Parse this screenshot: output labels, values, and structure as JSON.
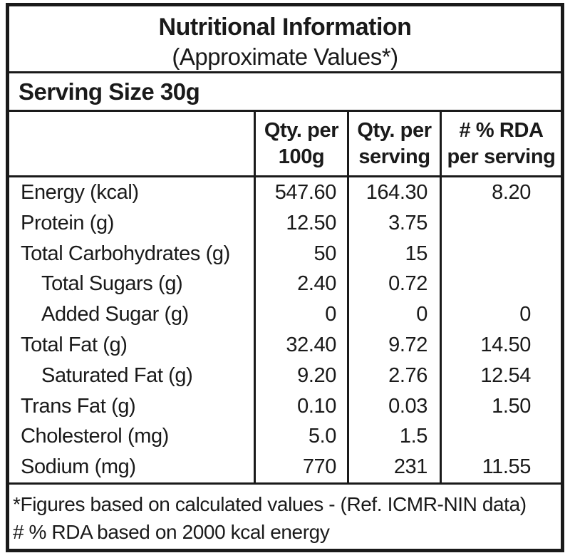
{
  "header": {
    "title": "Nutritional Information",
    "subtitle": "(Approximate Values*)"
  },
  "serving": {
    "label": "Serving Size 30g"
  },
  "table": {
    "columns": [
      {
        "line1": "",
        "line2": ""
      },
      {
        "line1": "Qty. per",
        "line2": "100g"
      },
      {
        "line1": "Qty. per",
        "line2": "serving"
      },
      {
        "line1": "# % RDA",
        "line2": "per serving"
      }
    ],
    "rows": [
      {
        "label": "Energy (kcal)",
        "per_100g": "547.60",
        "per_serving": "164.30",
        "rda_percent": "8.20"
      },
      {
        "label": "Protein (g)",
        "per_100g": "12.50",
        "per_serving": "3.75",
        "rda_percent": ""
      },
      {
        "label": "Total Carbohydrates (g)",
        "per_100g": "50",
        "per_serving": "15",
        "rda_percent": ""
      },
      {
        "label": "Total Sugars (g)",
        "per_100g": "2.40",
        "per_serving": "0.72",
        "rda_percent": ""
      },
      {
        "label": "Added Sugar (g)",
        "per_100g": "0",
        "per_serving": "0",
        "rda_percent": "0"
      },
      {
        "label": "Total Fat (g)",
        "per_100g": "32.40",
        "per_serving": "9.72",
        "rda_percent": "14.50"
      },
      {
        "label": "Saturated Fat (g)",
        "per_100g": "9.20",
        "per_serving": "2.76",
        "rda_percent": "12.54"
      },
      {
        "label": "Trans Fat (g)",
        "per_100g": "0.10",
        "per_serving": "0.03",
        "rda_percent": "1.50"
      },
      {
        "label": "Cholesterol (mg)",
        "per_100g": "5.0",
        "per_serving": "1.5",
        "rda_percent": ""
      },
      {
        "label": "Sodium (mg)",
        "per_100g": "770",
        "per_serving": "231",
        "rda_percent": "11.55"
      }
    ]
  },
  "footnotes": {
    "line1": "*Figures based on calculated values - (Ref. ICMR-NIN data)",
    "line2": "# % RDA based on 2000 kcal energy"
  },
  "colors": {
    "text": "#1a1a1a",
    "border": "#1a1a1a",
    "background": "#ffffff"
  }
}
